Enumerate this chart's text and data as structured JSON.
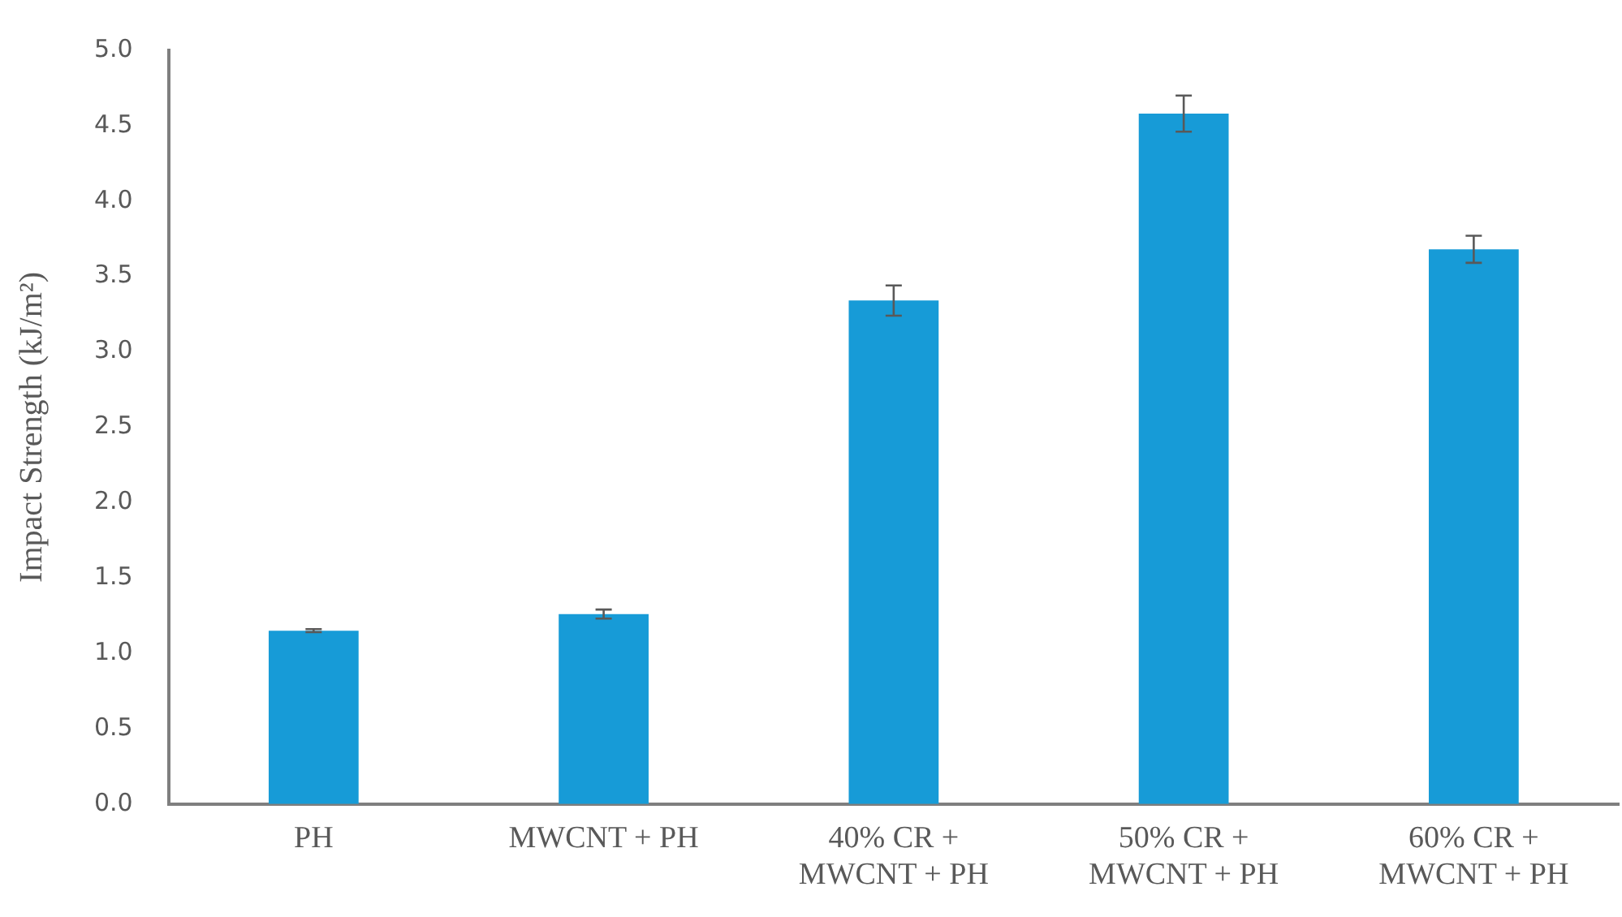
{
  "chart_data": {
    "type": "bar",
    "ylabel": "Impact Strength (kJ/m²)",
    "categories": [
      "PH",
      "MWCNT + PH",
      "40% CR + MWCNT + PH",
      "50% CR + MWCNT + PH",
      "60% CR + MWCNT + PH"
    ],
    "values": [
      1.15,
      1.26,
      3.34,
      4.58,
      3.68
    ],
    "errors": [
      0.01,
      0.03,
      0.1,
      0.12,
      0.09
    ],
    "color": "#179bd7",
    "ylim": [
      0,
      5
    ],
    "yticks": [
      {
        "value": 0,
        "label": "0.0"
      },
      0.5,
      {
        "value": 1,
        "label": "1.0"
      },
      1.5,
      {
        "value": 2,
        "label": "2.0"
      },
      2.5,
      {
        "value": 3,
        "label": "3.0"
      },
      3.5,
      {
        "value": 4,
        "label": "4.0"
      },
      4.5,
      {
        "value": 5,
        "label": "5.0"
      }
    ],
    "grid": false,
    "legend": false
  }
}
